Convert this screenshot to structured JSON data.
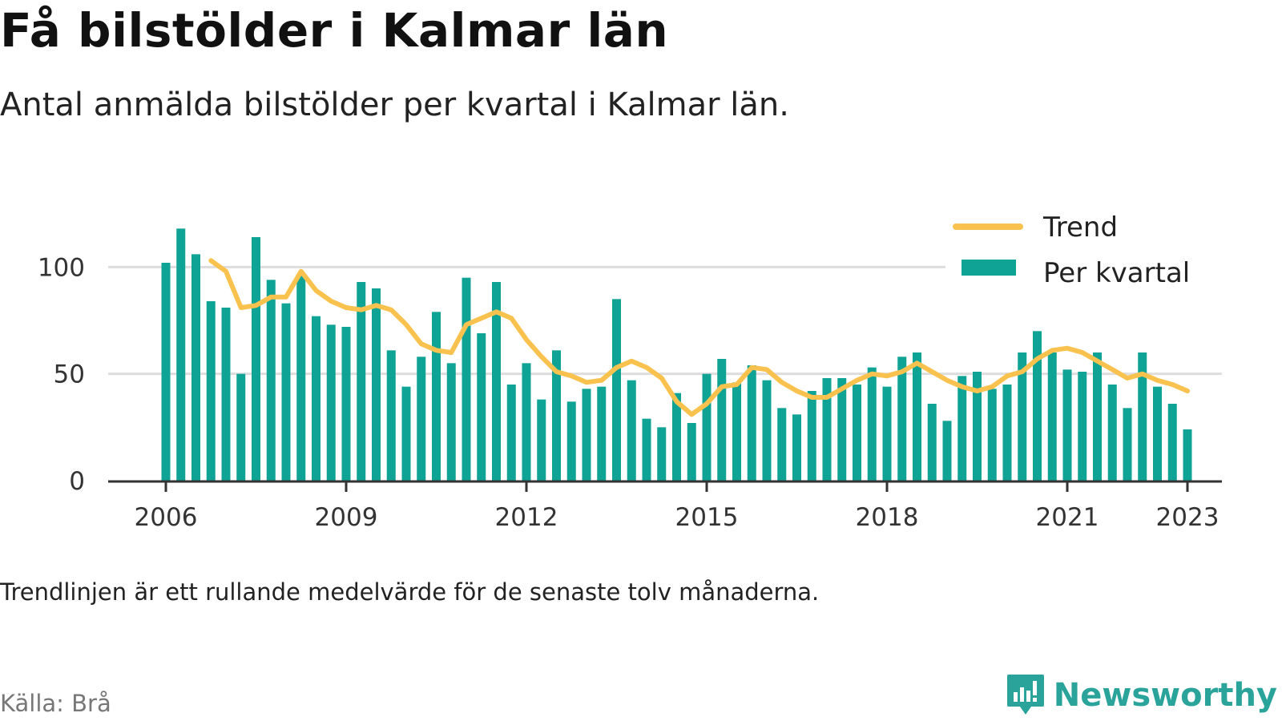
{
  "header": {
    "title": "Få bilstölder i Kalmar län",
    "subtitle": "Antal anmälda bilstölder per kvartal i Kalmar län."
  },
  "footer": {
    "note": "Trendlinjen är ett rullande medelvärde för de senaste tolv månaderna.",
    "source": "Källa: Brå",
    "brand": "Newsworthy",
    "brand_icon": "bar-chart-speech-bubble-icon"
  },
  "colors": {
    "bars": "#0fa396",
    "trend": "#f9c24e",
    "grid": "#dddddd",
    "axis": "#333333",
    "brand": "#2aa39a"
  },
  "chart_data": {
    "type": "bar",
    "title": "",
    "xlabel": "",
    "ylabel": "",
    "ylim": [
      0,
      120
    ],
    "y_ticks": [
      0,
      50,
      100
    ],
    "x_ticks": [
      "2006",
      "2009",
      "2012",
      "2015",
      "2018",
      "2021",
      "2023"
    ],
    "grid": true,
    "legend_position": "top-right",
    "categories": [
      "2006 Q1",
      "2006 Q2",
      "2006 Q3",
      "2006 Q4",
      "2007 Q1",
      "2007 Q2",
      "2007 Q3",
      "2007 Q4",
      "2008 Q1",
      "2008 Q2",
      "2008 Q3",
      "2008 Q4",
      "2009 Q1",
      "2009 Q2",
      "2009 Q3",
      "2009 Q4",
      "2010 Q1",
      "2010 Q2",
      "2010 Q3",
      "2010 Q4",
      "2011 Q1",
      "2011 Q2",
      "2011 Q3",
      "2011 Q4",
      "2012 Q1",
      "2012 Q2",
      "2012 Q3",
      "2012 Q4",
      "2013 Q1",
      "2013 Q2",
      "2013 Q3",
      "2013 Q4",
      "2014 Q1",
      "2014 Q2",
      "2014 Q3",
      "2014 Q4",
      "2015 Q1",
      "2015 Q2",
      "2015 Q3",
      "2015 Q4",
      "2016 Q1",
      "2016 Q2",
      "2016 Q3",
      "2016 Q4",
      "2017 Q1",
      "2017 Q2",
      "2017 Q3",
      "2017 Q4",
      "2018 Q1",
      "2018 Q2",
      "2018 Q3",
      "2018 Q4",
      "2019 Q1",
      "2019 Q2",
      "2019 Q3",
      "2019 Q4",
      "2020 Q1",
      "2020 Q2",
      "2020 Q3",
      "2020 Q4",
      "2021 Q1",
      "2021 Q2",
      "2021 Q3",
      "2021 Q4",
      "2022 Q1",
      "2022 Q2",
      "2022 Q3",
      "2022 Q4",
      "2023 Q1"
    ],
    "series": [
      {
        "name": "Per kvartal",
        "type": "bar",
        "values": [
          102,
          118,
          106,
          84,
          81,
          50,
          114,
          94,
          83,
          96,
          77,
          73,
          72,
          93,
          90,
          61,
          44,
          58,
          79,
          55,
          95,
          69,
          93,
          45,
          55,
          38,
          61,
          37,
          43,
          44,
          85,
          47,
          29,
          25,
          41,
          27,
          50,
          57,
          46,
          54,
          47,
          34,
          31,
          42,
          48,
          48,
          45,
          53,
          44,
          58,
          60,
          36,
          28,
          49,
          51,
          43,
          45,
          60,
          70,
          60,
          52,
          51,
          60,
          45,
          34,
          60,
          44,
          36,
          24
        ]
      },
      {
        "name": "Trend",
        "type": "line",
        "values": [
          null,
          null,
          null,
          103,
          98,
          81,
          82,
          86,
          86,
          98,
          89,
          84,
          81,
          80,
          82,
          80,
          73,
          64,
          61,
          60,
          73,
          76,
          79,
          76,
          66,
          58,
          51,
          49,
          46,
          47,
          53,
          56,
          53,
          48,
          37,
          31,
          36,
          44,
          45,
          53,
          52,
          46,
          42,
          39,
          39,
          43,
          47,
          50,
          49,
          51,
          55,
          51,
          47,
          44,
          42,
          44,
          49,
          51,
          57,
          61,
          62,
          60,
          56,
          52,
          48,
          50,
          47,
          45,
          42
        ]
      }
    ]
  }
}
